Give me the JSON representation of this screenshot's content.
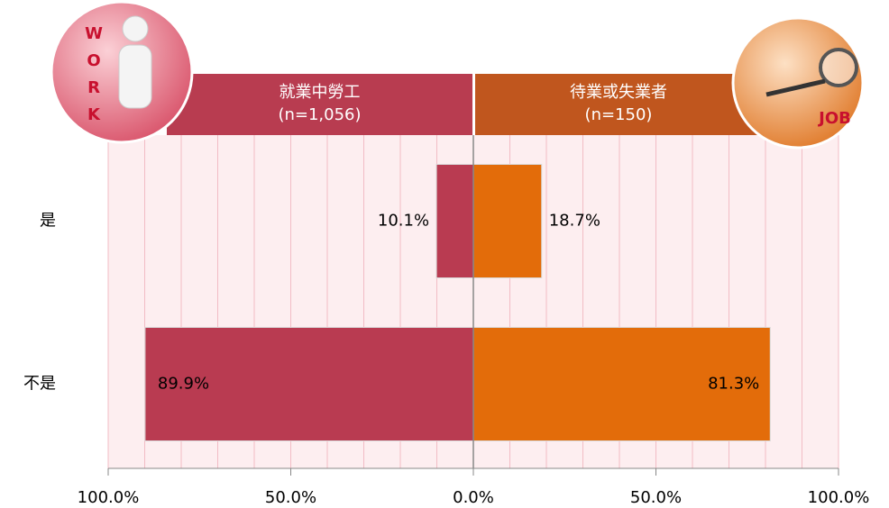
{
  "chart_data": {
    "type": "butterfly",
    "categories": [
      "是",
      "不是"
    ],
    "series": [
      {
        "name": "就業中勞工",
        "note": "(n=1,056)",
        "side": "left",
        "color": "#b93b51",
        "header_color": "#b83c50",
        "values": [
          10.1,
          89.9
        ],
        "value_labels": [
          "10.1%",
          "89.9%"
        ]
      },
      {
        "name": "待業或失業者",
        "note": "(n=150)",
        "side": "right",
        "color": "#e36c0a",
        "header_color": "#c0561e",
        "values": [
          18.7,
          81.3
        ],
        "value_labels": [
          "18.7%",
          "81.3%"
        ]
      }
    ],
    "xlim": [
      -100,
      100
    ],
    "xticks": [
      {
        "value": -100,
        "label": "100.0%"
      },
      {
        "value": -50,
        "label": "50.0%"
      },
      {
        "value": 0,
        "label": "0.0%"
      },
      {
        "value": 50,
        "label": "50.0%"
      },
      {
        "value": 100,
        "label": "100.0%"
      }
    ],
    "minor_xticks": [
      -90,
      -80,
      -70,
      -60,
      -40,
      -30,
      -20,
      -10,
      10,
      20,
      30,
      40,
      60,
      70,
      80,
      90
    ],
    "grid": true,
    "left_icon_text": "WORK",
    "right_icon_text": "JOB"
  }
}
